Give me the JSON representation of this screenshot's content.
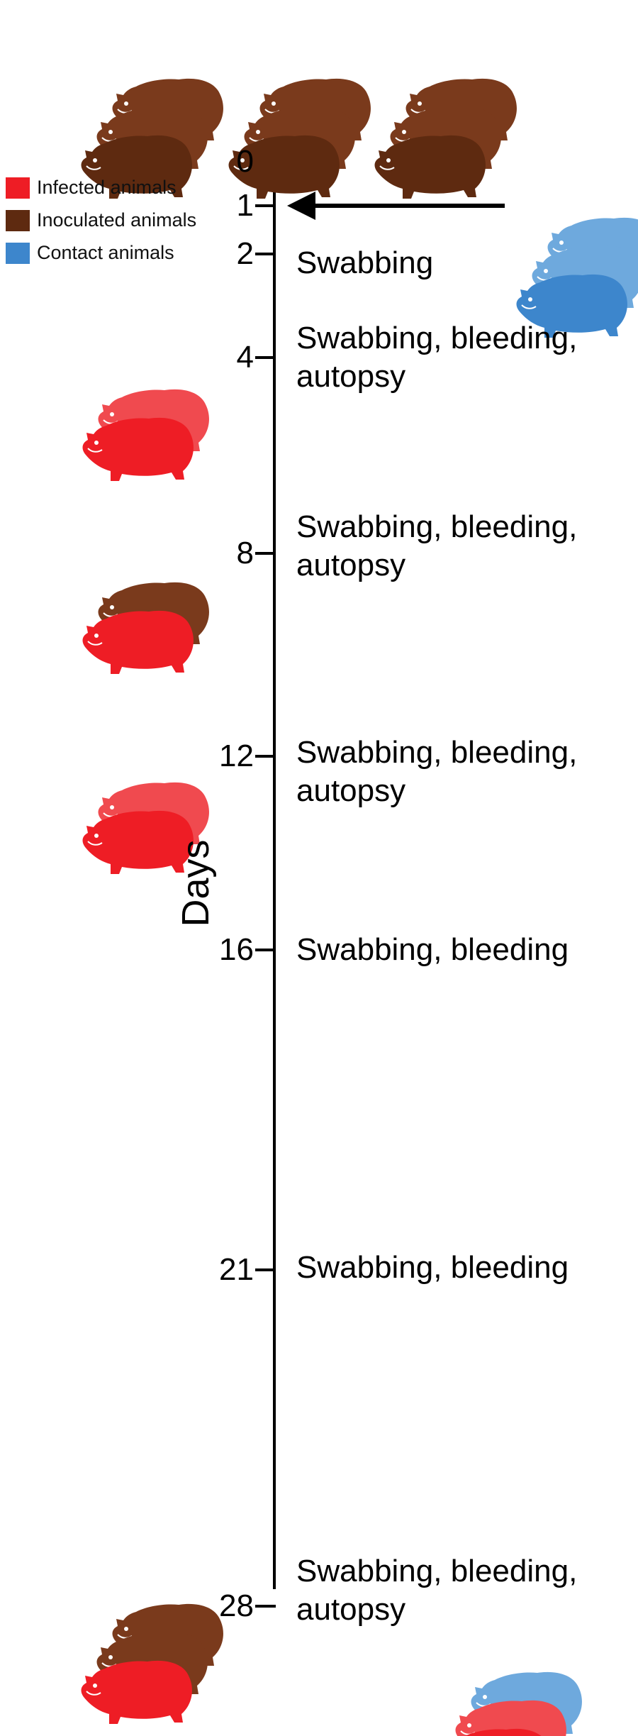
{
  "axis": {
    "title": "Days"
  },
  "legend": [
    {
      "label": "Infected animals",
      "color": "#ee1d25"
    },
    {
      "label": "Inoculated animals",
      "color": "#5e2a10"
    },
    {
      "label": "Contact animals",
      "color": "#3d86cc"
    }
  ],
  "colors": {
    "infected": "#ee1d25",
    "inoculated": "#5e2a10",
    "contact": "#3d86cc",
    "line": "#000000"
  },
  "timeline": [
    {
      "day": "0",
      "event": []
    },
    {
      "day": "1",
      "event": []
    },
    {
      "day": "2",
      "event": [
        "Swabbing"
      ]
    },
    {
      "day": "4",
      "event": [
        "Swabbing, bleeding,",
        "autopsy"
      ]
    },
    {
      "day": "8",
      "event": [
        "Swabbing, bleeding,",
        "autopsy"
      ]
    },
    {
      "day": "12",
      "event": [
        "Swabbing, bleeding,",
        "autopsy"
      ]
    },
    {
      "day": "16",
      "event": [
        "Swabbing, bleeding"
      ]
    },
    {
      "day": "21",
      "event": [
        "Swabbing, bleeding"
      ]
    },
    {
      "day": "28",
      "event": [
        "Swabbing, bleeding,",
        "autopsy"
      ]
    }
  ],
  "animal_groups": [
    {
      "location": "top-1",
      "icon": "ferret-icon",
      "animals": [
        "inoculated",
        "inoculated",
        "inoculated"
      ]
    },
    {
      "location": "top-2",
      "icon": "ferret-icon",
      "animals": [
        "inoculated",
        "inoculated",
        "inoculated"
      ]
    },
    {
      "location": "top-3",
      "icon": "ferret-icon",
      "animals": [
        "inoculated",
        "inoculated",
        "inoculated"
      ]
    },
    {
      "location": "contact-day1",
      "icon": "ferret-icon",
      "animals": [
        "contact",
        "contact",
        "contact"
      ]
    },
    {
      "location": "day4",
      "icon": "ferret-icon",
      "animals": [
        "infected",
        "infected"
      ]
    },
    {
      "location": "day8",
      "icon": "ferret-icon",
      "animals": [
        "inoculated",
        "infected"
      ]
    },
    {
      "location": "day12",
      "icon": "ferret-icon",
      "animals": [
        "infected",
        "infected"
      ]
    },
    {
      "location": "day28-left",
      "icon": "ferret-icon",
      "animals": [
        "inoculated",
        "inoculated",
        "infected"
      ]
    },
    {
      "location": "day28-right",
      "icon": "ferret-icon",
      "animals": [
        "contact",
        "infected",
        "infected"
      ]
    }
  ]
}
